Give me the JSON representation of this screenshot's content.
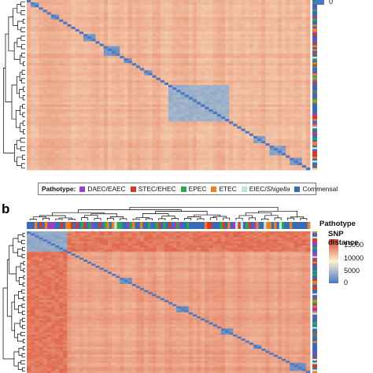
{
  "panel_b_label": "b",
  "legend": {
    "title": "Pathotype:",
    "items": [
      {
        "label": "DAEC/EAEC",
        "color": "#9b3fc4"
      },
      {
        "label": "STEC/EHEC",
        "color": "#d63a2b"
      },
      {
        "label": "EPEC",
        "color": "#2da84a"
      },
      {
        "label": "ETEC",
        "color": "#f07f1e"
      },
      {
        "label": "EIEC/",
        "italic": "Shigella",
        "color": "#bfe6d8"
      },
      {
        "label": "Commensal",
        "color": "#3a6bb5"
      }
    ]
  },
  "colors": {
    "low": "#4b78c0",
    "mid": "#fbf2d3",
    "high": "#d9442b"
  },
  "annotation_title": "Pathotype",
  "colorbar_title": "SNP distance",
  "colorbar_top_tick_panel_a": "0",
  "chart_data": [
    {
      "type": "heatmap",
      "panel": "a",
      "value_label": "SNP distance",
      "clim": [
        0,
        15000
      ],
      "diagonal_clusters": [
        {
          "center": 0.03,
          "size": 0.03,
          "value": 1500
        },
        {
          "center": 0.1,
          "size": 0.025,
          "value": 1500
        },
        {
          "center": 0.22,
          "size": 0.04,
          "value": 2000
        },
        {
          "center": 0.3,
          "size": 0.05,
          "value": 1800
        },
        {
          "center": 0.36,
          "size": 0.03,
          "value": 2000
        },
        {
          "center": 0.43,
          "size": 0.03,
          "value": 2000
        },
        {
          "center": 0.61,
          "size": 0.22,
          "value": 3500
        },
        {
          "center": 0.82,
          "size": 0.05,
          "value": 2500
        },
        {
          "center": 0.88,
          "size": 0.06,
          "value": 2500
        },
        {
          "center": 0.95,
          "size": 0.05,
          "value": 2000
        }
      ]
    },
    {
      "type": "heatmap",
      "panel": "b",
      "value_label": "SNP distance",
      "clim": [
        0,
        15000
      ],
      "colorbar_ticks": [
        15000,
        10000,
        5000,
        0
      ],
      "colorbar_tick_labels": [
        "15000",
        "10000",
        "5000",
        "0"
      ],
      "diagonal_clusters": [
        {
          "center": 0.07,
          "size": 0.14,
          "value": 3000
        },
        {
          "center": 0.35,
          "size": 0.04,
          "value": 1500
        },
        {
          "center": 0.55,
          "size": 0.03,
          "value": 1500
        },
        {
          "center": 0.71,
          "size": 0.04,
          "value": 1500
        },
        {
          "center": 0.82,
          "size": 0.03,
          "value": 1500
        },
        {
          "center": 0.96,
          "size": 0.05,
          "value": 1500
        }
      ]
    }
  ]
}
